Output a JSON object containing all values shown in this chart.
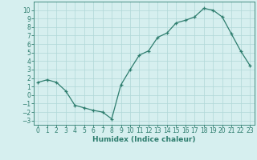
{
  "x": [
    0,
    1,
    2,
    3,
    4,
    5,
    6,
    7,
    8,
    9,
    10,
    11,
    12,
    13,
    14,
    15,
    16,
    17,
    18,
    19,
    20,
    21,
    22,
    23
  ],
  "y": [
    1.5,
    1.8,
    1.5,
    0.5,
    -1.2,
    -1.5,
    -1.8,
    -2.0,
    -2.8,
    1.2,
    3.0,
    4.7,
    5.2,
    6.8,
    7.3,
    8.5,
    8.8,
    9.2,
    10.2,
    10.0,
    9.2,
    7.2,
    5.2,
    3.5
  ],
  "xlabel": "Humidex (Indice chaleur)",
  "line_color": "#2e7d6e",
  "marker": "+",
  "bg_color": "#d6efef",
  "grid_color": "#b0d8d8",
  "tick_color": "#2e7d6e",
  "label_color": "#2e7d6e",
  "ylim": [
    -3.5,
    11
  ],
  "xlim": [
    -0.5,
    23.5
  ],
  "yticks": [
    -3,
    -2,
    -1,
    0,
    1,
    2,
    3,
    4,
    5,
    6,
    7,
    8,
    9,
    10
  ],
  "xticks": [
    0,
    1,
    2,
    3,
    4,
    5,
    6,
    7,
    8,
    9,
    10,
    11,
    12,
    13,
    14,
    15,
    16,
    17,
    18,
    19,
    20,
    21,
    22,
    23
  ],
  "xlabel_fontsize": 6.5,
  "tick_fontsize": 5.5
}
